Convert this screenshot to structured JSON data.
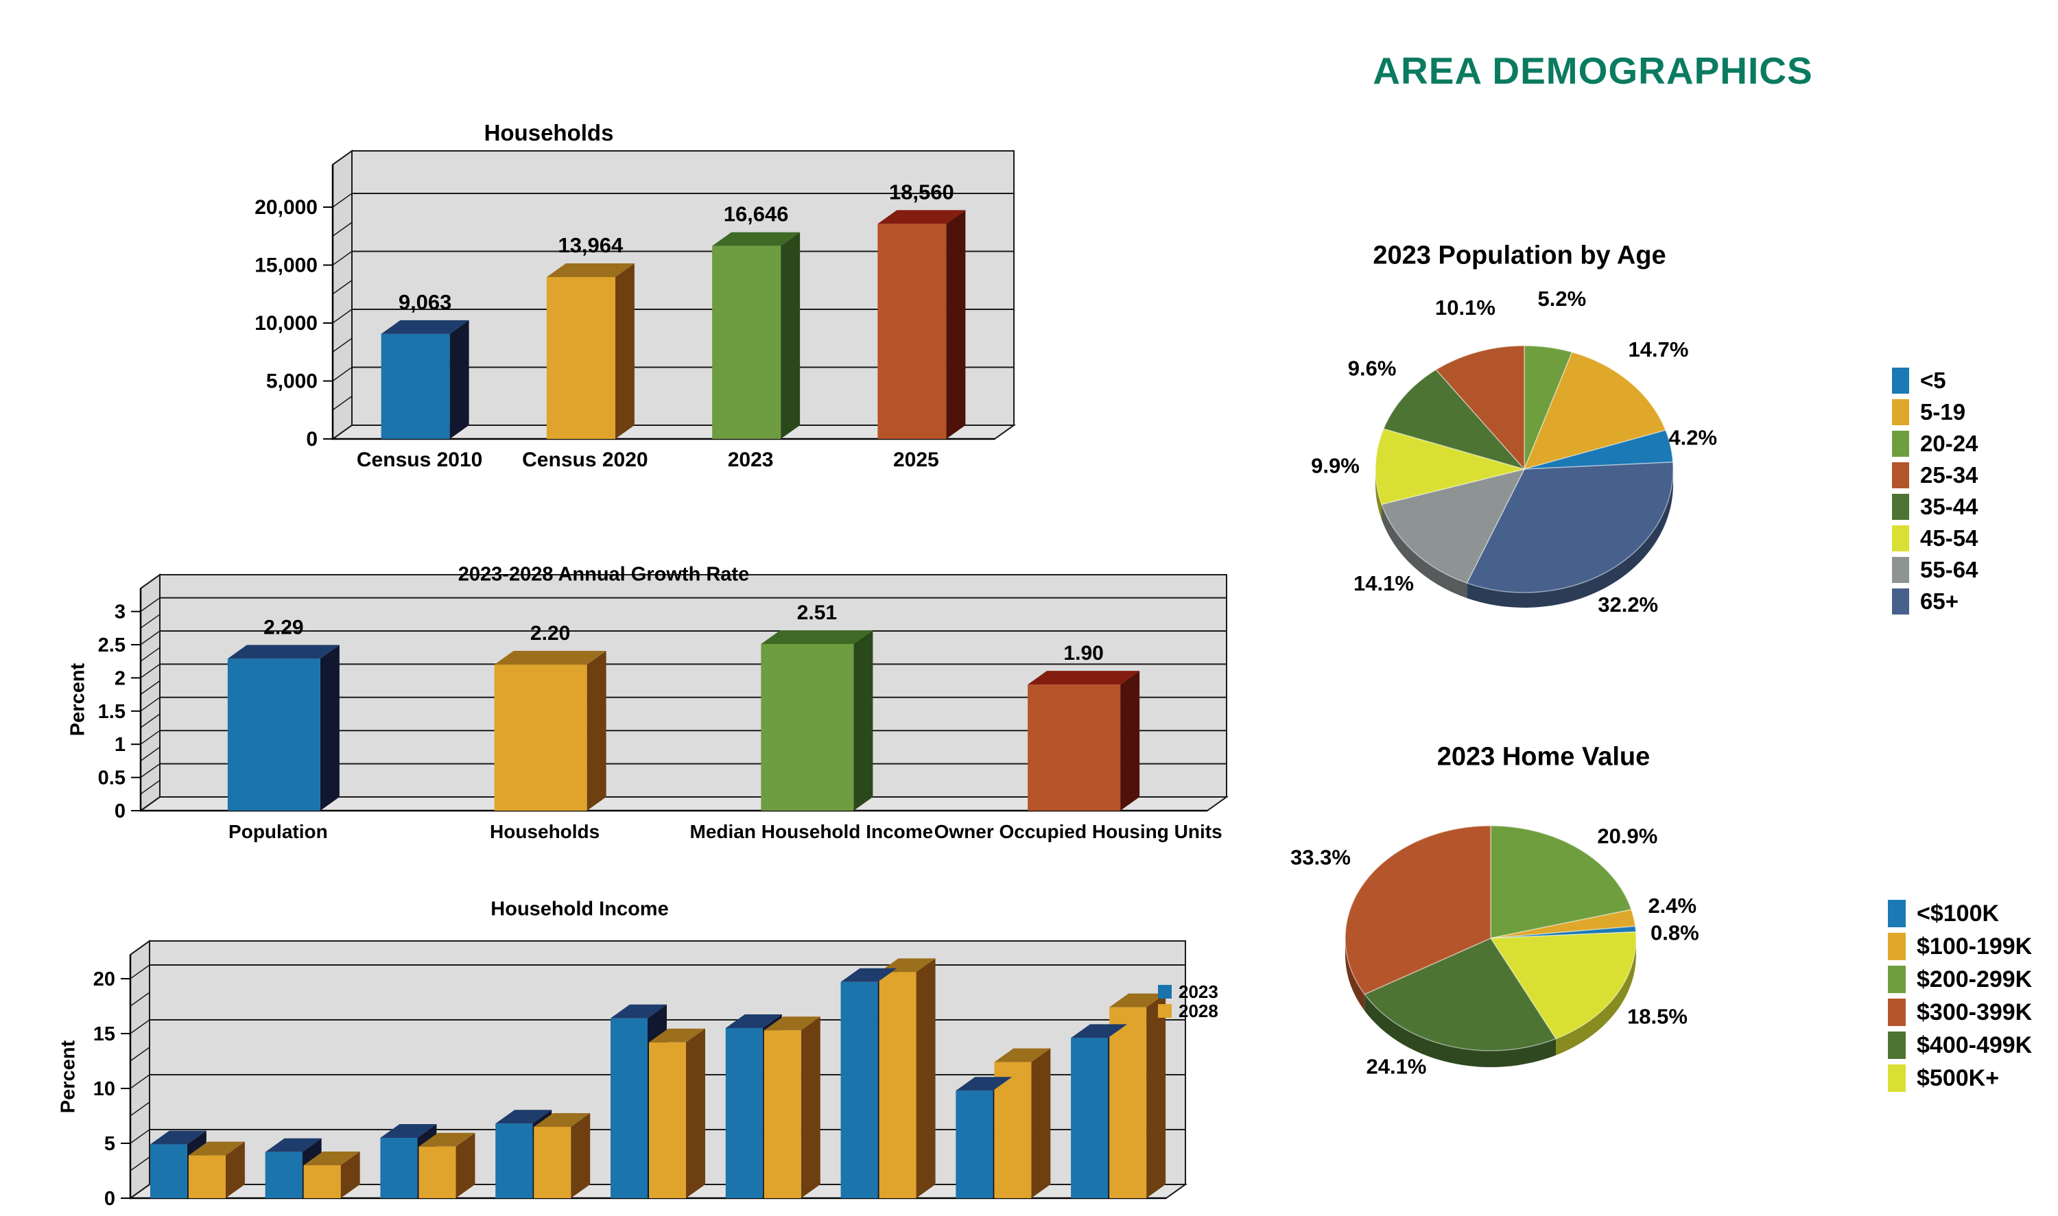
{
  "page_title": "AREA DEMOGRAPHICS",
  "title_color": "#0A7B60",
  "chart_data": [
    {
      "id": "households",
      "type": "bar",
      "title": "Households",
      "categories": [
        "Census 2010",
        "Census 2020",
        "2023",
        "2025"
      ],
      "values": [
        9063,
        13964,
        16646,
        18560
      ],
      "value_labels": [
        "9,063",
        "13,964",
        "16,646",
        "18,560"
      ],
      "bar_colors": [
        "blue",
        "gold",
        "green",
        "rust"
      ],
      "xlabel": "",
      "ylabel": "",
      "y_ticks": [
        "0",
        "5,000",
        "10,000",
        "15,000",
        "20,000"
      ],
      "ylim": [
        0,
        20000
      ],
      "grid_step": 5000
    },
    {
      "id": "growth",
      "type": "bar",
      "title": "2023-2028 Annual Growth Rate",
      "categories": [
        "Population",
        "Households",
        "Median Household Income",
        "Owner Occupied Housing Units"
      ],
      "values": [
        2.29,
        2.2,
        2.51,
        1.9
      ],
      "value_labels": [
        "2.29",
        "2.20",
        "2.51",
        "1.90"
      ],
      "bar_colors": [
        "blue",
        "gold",
        "green",
        "rust"
      ],
      "xlabel": "",
      "ylabel": "Percent",
      "y_ticks": [
        "0",
        "0.5",
        "1",
        "1.5",
        "2",
        "2.5",
        "3"
      ],
      "ylim": [
        0,
        3
      ],
      "grid_step": 0.5
    },
    {
      "id": "income",
      "type": "grouped-bar",
      "title": "Household Income",
      "categories": [
        "",
        "",
        "",
        "",
        "",
        "",
        "",
        "",
        ""
      ],
      "series": [
        {
          "name": "2023",
          "color": "blue",
          "values": [
            4.9,
            4.2,
            5.5,
            6.8,
            16.4,
            15.5,
            19.7,
            9.8,
            14.6
          ]
        },
        {
          "name": "2028",
          "color": "gold",
          "values": [
            3.9,
            3.0,
            4.7,
            6.5,
            14.2,
            15.3,
            20.6,
            12.4,
            17.4
          ]
        }
      ],
      "legend": [
        "2023",
        "2028"
      ],
      "legend_position": "right",
      "xlabel": "",
      "ylabel": "Percent",
      "y_ticks": [
        "0",
        "5",
        "10",
        "15",
        "20"
      ],
      "ylim": [
        0,
        20
      ],
      "grid_step": 5
    },
    {
      "id": "population_age",
      "type": "pie",
      "title": "2023 Population by Age",
      "legend_position": "right",
      "slices": [
        {
          "label": "<5",
          "pct": 4.2,
          "pct_label": "4.2%",
          "color": "#1B79B5"
        },
        {
          "label": "5-19",
          "pct": 14.7,
          "pct_label": "14.7%",
          "color": "#DFA82A"
        },
        {
          "label": "20-24",
          "pct": 5.2,
          "pct_label": "5.2%",
          "color": "#6F9E3F"
        },
        {
          "label": "25-34",
          "pct": 10.1,
          "pct_label": "10.1%",
          "color": "#B2552A"
        },
        {
          "label": "35-44",
          "pct": 9.6,
          "pct_label": "9.6%",
          "color": "#4E7434"
        },
        {
          "label": "45-54",
          "pct": 9.9,
          "pct_label": "9.9%",
          "color": "#D9E033"
        },
        {
          "label": "55-64",
          "pct": 14.1,
          "pct_label": "14.1%",
          "color": "#8E9393"
        },
        {
          "label": "65+",
          "pct": 32.2,
          "pct_label": "32.2%",
          "color": "#47618C"
        }
      ],
      "draw_order": [
        2,
        1,
        0,
        7,
        6,
        5,
        4,
        3
      ]
    },
    {
      "id": "home_value",
      "type": "pie",
      "title": "2023 Home Value",
      "legend_position": "right",
      "slices": [
        {
          "label": "<$100K",
          "pct": 0.8,
          "pct_label": "0.8%",
          "color": "#1B79B5"
        },
        {
          "label": "$100-199K",
          "pct": 2.4,
          "pct_label": "2.4%",
          "color": "#DFA82A"
        },
        {
          "label": "$200-299K",
          "pct": 20.9,
          "pct_label": "20.9%",
          "color": "#6F9E3F"
        },
        {
          "label": "$300-399K",
          "pct": 33.3,
          "pct_label": "33.3%",
          "color": "#B5552B"
        },
        {
          "label": "$400-499K",
          "pct": 24.1,
          "pct_label": "24.1%",
          "color": "#4E7434"
        },
        {
          "label": "$500K+",
          "pct": 18.5,
          "pct_label": "18.5%",
          "color": "#D9E033"
        }
      ],
      "draw_order": [
        2,
        1,
        0,
        5,
        4,
        3
      ]
    }
  ],
  "palette": {
    "blue": {
      "front": "#1B74AC",
      "top": "#1E3C6C",
      "side": "#10172E"
    },
    "gold": {
      "front": "#E0A42C",
      "top": "#9C6F1D",
      "side": "#6E3F10"
    },
    "green": {
      "front": "#6E9C40",
      "top": "#3E6A26",
      "side": "#2B481B"
    },
    "rust": {
      "front": "#B55429",
      "top": "#821D10",
      "side": "#4E120A"
    }
  }
}
